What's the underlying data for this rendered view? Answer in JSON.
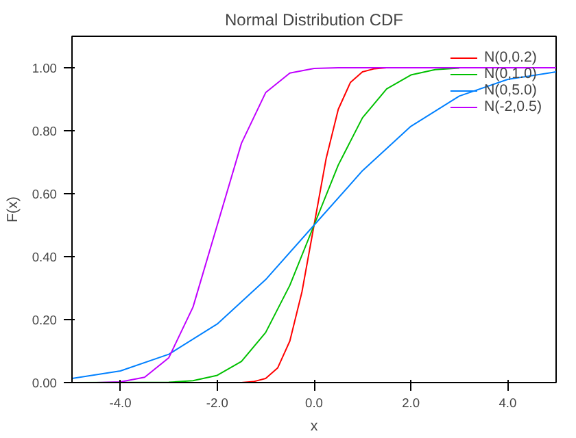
{
  "chart_data": {
    "type": "line",
    "title": "Normal Distribution CDF",
    "xlabel": "x",
    "ylabel": "F(x)",
    "xlim": [
      -5,
      5
    ],
    "ylim": [
      0,
      1.1
    ],
    "xticks": [
      {
        "value": -4,
        "label": "-4.0"
      },
      {
        "value": -2,
        "label": "-2.0"
      },
      {
        "value": 0,
        "label": "0.0"
      },
      {
        "value": 2,
        "label": "2.0"
      },
      {
        "value": 4,
        "label": "4.0"
      }
    ],
    "yticks": [
      {
        "value": 0,
        "label": "0.00"
      },
      {
        "value": 0.2,
        "label": "0.20"
      },
      {
        "value": 0.4,
        "label": "0.40"
      },
      {
        "value": 0.6,
        "label": "0.60"
      },
      {
        "value": 0.8,
        "label": "0.80"
      },
      {
        "value": 1,
        "label": "1.00"
      }
    ],
    "grid": false,
    "legend": "top right",
    "marker": "none",
    "line_style": "solid",
    "series": [
      {
        "name": "N(0,0.2)",
        "color": "#ff0000",
        "x": [
          -5,
          -1.5,
          -1.25,
          -1,
          -0.75,
          -0.5,
          -0.25,
          0,
          0.25,
          0.5,
          0.75,
          1,
          1.25,
          1.5
        ],
        "values": [
          0,
          0,
          0.003,
          0.013,
          0.047,
          0.132,
          0.288,
          0.5,
          0.712,
          0.868,
          0.953,
          0.987,
          0.997,
          1
        ]
      },
      {
        "name": "N(0,1.0)",
        "color": "#00c000",
        "x": [
          -5,
          -3,
          -2.5,
          -2,
          -1.5,
          -1,
          -0.5,
          0,
          0.5,
          1,
          1.5,
          2,
          2.5,
          3
        ],
        "values": [
          0,
          0.001,
          0.006,
          0.023,
          0.067,
          0.159,
          0.309,
          0.5,
          0.691,
          0.841,
          0.933,
          0.977,
          0.994,
          0.999
        ]
      },
      {
        "name": "N(0,5.0)",
        "color": "#0080ff",
        "x": [
          -5,
          -4,
          -3,
          -2,
          -1,
          0,
          1,
          2,
          3,
          4,
          5
        ],
        "values": [
          0.013,
          0.037,
          0.09,
          0.186,
          0.327,
          0.5,
          0.673,
          0.814,
          0.91,
          0.963,
          0.987
        ]
      },
      {
        "name": "N(-2,0.5)",
        "color": "#c000ff",
        "x": [
          -5,
          -4.5,
          -4,
          -3.5,
          -3,
          -2.5,
          -2,
          -1.5,
          -1,
          -0.5,
          0,
          0.5,
          5
        ],
        "values": [
          0,
          0,
          0.002,
          0.017,
          0.079,
          0.24,
          0.5,
          0.76,
          0.921,
          0.983,
          0.998,
          1,
          1
        ]
      }
    ]
  }
}
